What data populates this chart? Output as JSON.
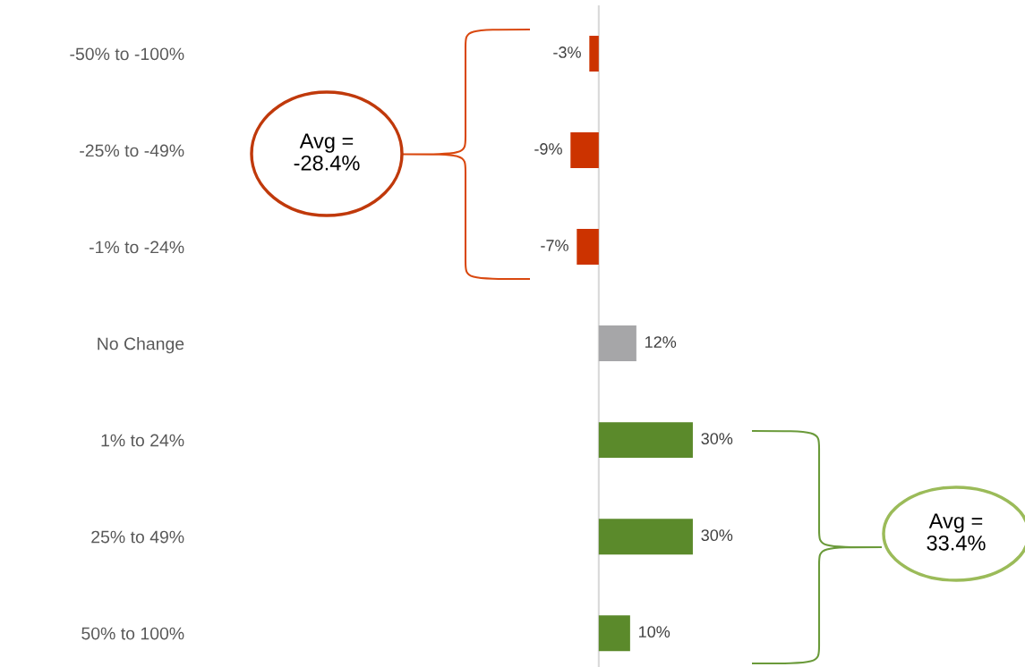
{
  "chart_data": {
    "type": "bar",
    "orientation": "horizontal",
    "data_labels": true,
    "grid": false,
    "legend": false,
    "categories": [
      "-50% to -100%",
      "-25% to -49%",
      "-1% to -24%",
      "No Change",
      "1% to 24%",
      "25% to 49%",
      "50% to 100%"
    ],
    "values": [
      -3,
      -9,
      -7,
      12,
      30,
      30,
      10
    ],
    "value_labels": [
      "-3%",
      "-9%",
      "-7%",
      "12%",
      "30%",
      "30%",
      "10%"
    ],
    "colors": [
      "#cc3300",
      "#cc3300",
      "#cc3300",
      "#a6a6a8",
      "#5b8a2b",
      "#5b8a2b",
      "#5b8a2b"
    ],
    "annotations": [
      "Avg =\n-28.4%",
      "Avg =\n33.4%"
    ]
  }
}
